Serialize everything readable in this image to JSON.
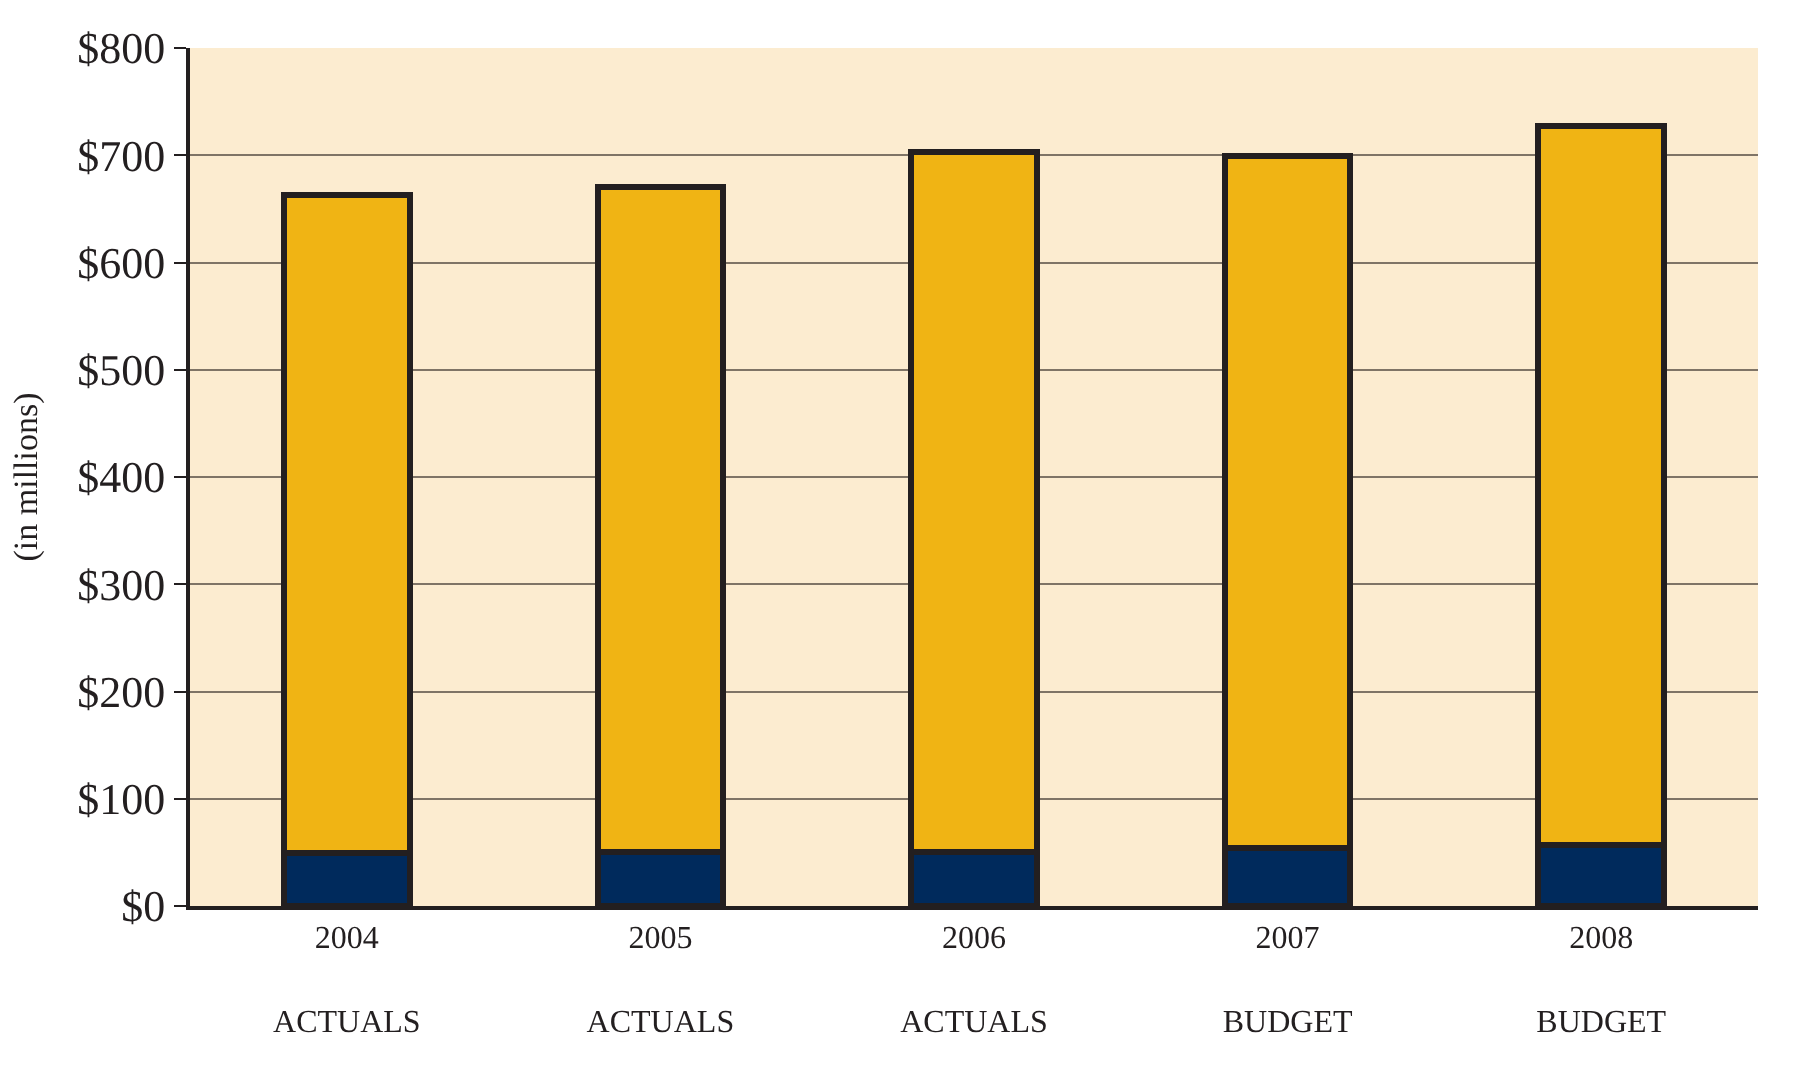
{
  "chart_data": {
    "type": "bar",
    "stacked": true,
    "ylabel": "(in millions)",
    "categories": [
      "2004\nACTUALS",
      "2005\nACTUALS",
      "2006\nACTUALS",
      "2007\nBUDGET",
      "2008\nBUDGET"
    ],
    "series": [
      {
        "color": "#002a5c",
        "values": [
          49,
          50,
          50,
          54,
          57
        ]
      },
      {
        "color": "#f0b414",
        "values": [
          614,
          620,
          653,
          645,
          670
        ]
      }
    ],
    "ylim": [
      0,
      800
    ],
    "yticks": [
      {
        "value": 0,
        "label": "$0"
      },
      {
        "value": 100,
        "label": "$100"
      },
      {
        "value": 200,
        "label": "$200"
      },
      {
        "value": 300,
        "label": "$300"
      },
      {
        "value": 400,
        "label": "$400"
      },
      {
        "value": 500,
        "label": "$500"
      },
      {
        "value": 600,
        "label": "$600"
      },
      {
        "value": 700,
        "label": "$700"
      },
      {
        "value": 800,
        "label": "$800"
      }
    ],
    "grid": "y"
  }
}
